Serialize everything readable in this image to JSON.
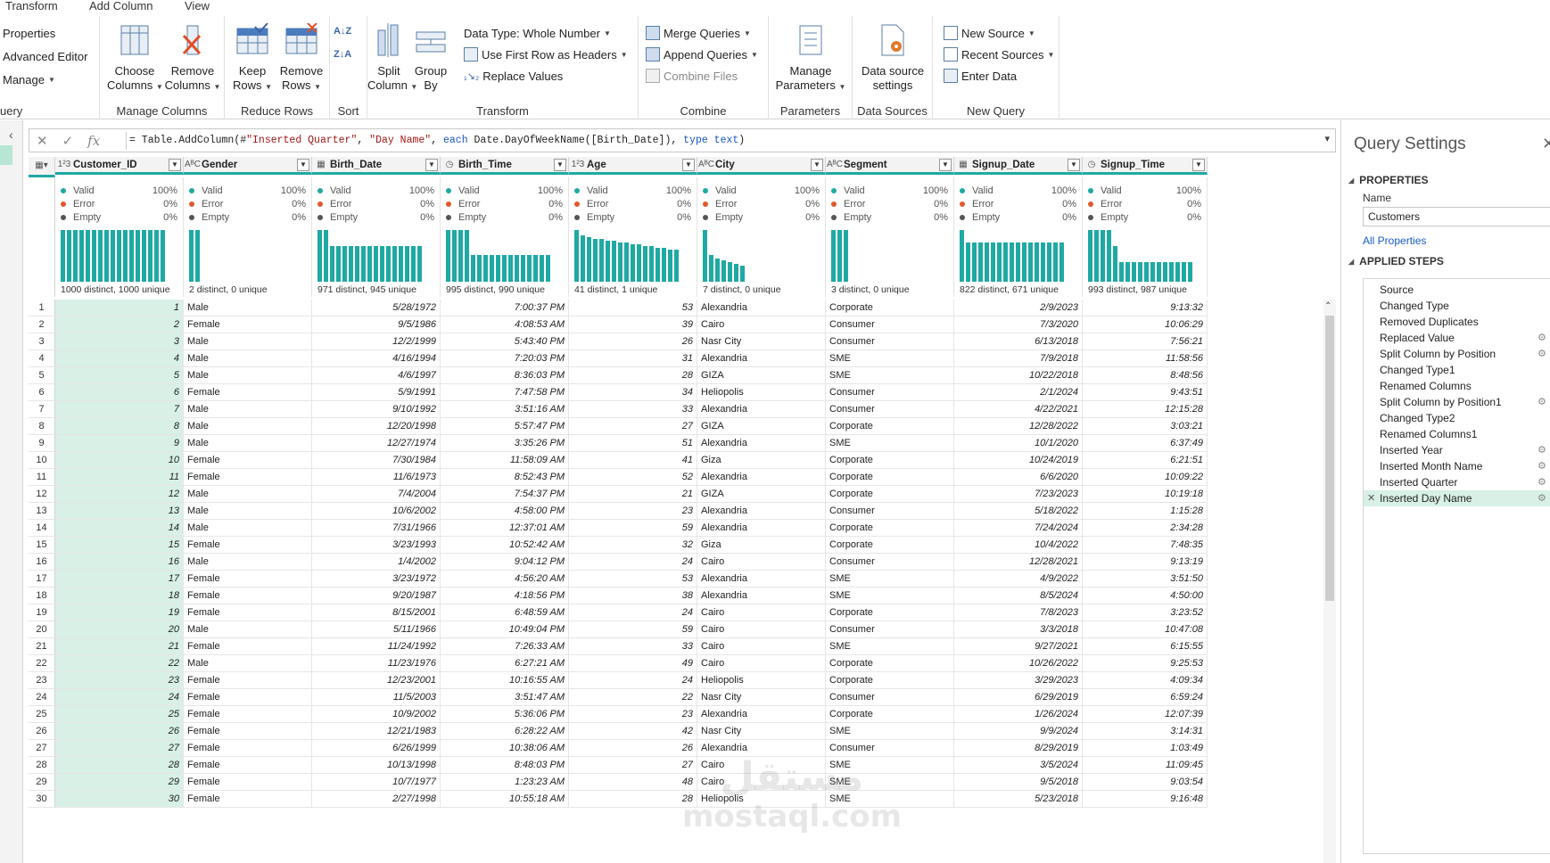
{
  "ribbon": {
    "tabs": [
      "Transform",
      "Add Column",
      "View"
    ],
    "group_query": {
      "label": "uery",
      "properties": "Properties",
      "advanced_editor": "Advanced Editor",
      "manage": "Manage"
    },
    "group_manage_columns": {
      "label": "Manage Columns",
      "choose": "Choose",
      "choose2": "Columns",
      "remove": "Remove",
      "remove2": "Columns"
    },
    "group_reduce_rows": {
      "label": "Reduce Rows",
      "keep": "Keep",
      "keep2": "Rows",
      "remove": "Remove",
      "remove2": "Rows"
    },
    "group_sort": {
      "label": "Sort"
    },
    "group_transform": {
      "label": "Transform",
      "split": "Split",
      "split2": "Column",
      "group": "Group",
      "group2": "By",
      "data_type": "Data Type: Whole Number",
      "first_row": "Use First Row as Headers",
      "replace": "Replace Values"
    },
    "group_combine": {
      "label": "Combine",
      "merge": "Merge Queries",
      "append": "Append Queries",
      "combine_files": "Combine Files"
    },
    "group_parameters": {
      "label": "Parameters",
      "manage": "Manage",
      "manage2": "Parameters"
    },
    "group_data_sources": {
      "label": "Data Sources",
      "settings": "Data source",
      "settings2": "settings"
    },
    "group_new_query": {
      "label": "New Query",
      "new_source": "New Source",
      "recent_sources": "Recent Sources",
      "enter_data": "Enter Data"
    }
  },
  "formula": {
    "prefix": "= Table.AddColumn(#",
    "s1": "\"Inserted Quarter\"",
    "c1": ", ",
    "s2": "\"Day Name\"",
    "c2": ", ",
    "kw1": "each",
    "c3": " Date.DayOfWeekName([Birth_Date]), ",
    "kw2": "type",
    "c4": " ",
    "kw3": "text",
    "c5": ")"
  },
  "columns": [
    {
      "name": "Customer_ID",
      "type": "1²3",
      "valid": "100%",
      "error": "0%",
      "empty": "0%",
      "distinct": "1000 distinct, 1000 unique"
    },
    {
      "name": "Gender",
      "type": "AᴮC",
      "valid": "100%",
      "error": "0%",
      "empty": "0%",
      "distinct": "2 distinct, 0 unique"
    },
    {
      "name": "Birth_Date",
      "type": "▦",
      "valid": "100%",
      "error": "0%",
      "empty": "0%",
      "distinct": "971 distinct, 945 unique"
    },
    {
      "name": "Birth_Time",
      "type": "◷",
      "valid": "100%",
      "error": "0%",
      "empty": "0%",
      "distinct": "995 distinct, 990 unique"
    },
    {
      "name": "Age",
      "type": "1²3",
      "valid": "100%",
      "error": "0%",
      "empty": "0%",
      "distinct": "41 distinct, 1 unique"
    },
    {
      "name": "City",
      "type": "AᴮC",
      "valid": "100%",
      "error": "0%",
      "empty": "0%",
      "distinct": "7 distinct, 0 unique"
    },
    {
      "name": "Segment",
      "type": "AᴮC",
      "valid": "100%",
      "error": "0%",
      "empty": "0%",
      "distinct": "3 distinct, 0 unique"
    },
    {
      "name": "Signup_Date",
      "type": "▦",
      "valid": "100%",
      "error": "0%",
      "empty": "0%",
      "distinct": "822 distinct, 671 unique"
    },
    {
      "name": "Signup_Time",
      "type": "◷",
      "valid": "100%",
      "error": "0%",
      "empty": "0%",
      "distinct": "993 distinct, 987 unique"
    }
  ],
  "profile_labels": {
    "valid": "Valid",
    "error": "Error",
    "empty": "Empty"
  },
  "colors": {
    "accent": "#1fa9a3",
    "valid": "#1fa9a3",
    "error": "#e05a2b",
    "empty": "#555555",
    "selected": "#d8f0e6"
  },
  "rows": [
    [
      "1",
      "Male",
      "5/28/1972",
      "7:00:37 PM",
      "53",
      "Alexandria",
      "Corporate",
      "2/9/2023",
      "9:13:32"
    ],
    [
      "2",
      "Female",
      "9/5/1986",
      "4:08:53 AM",
      "39",
      "Cairo",
      "Consumer",
      "7/3/2020",
      "10:06:29"
    ],
    [
      "3",
      "Male",
      "12/2/1999",
      "5:43:40 PM",
      "26",
      "Nasr City",
      "Consumer",
      "6/13/2018",
      "7:56:21"
    ],
    [
      "4",
      "Male",
      "4/16/1994",
      "7:20:03 PM",
      "31",
      "Alexandria",
      "SME",
      "7/9/2018",
      "11:58:56"
    ],
    [
      "5",
      "Male",
      "4/6/1997",
      "8:36:03 PM",
      "28",
      "GIZA",
      "SME",
      "10/22/2018",
      "8:48:56"
    ],
    [
      "6",
      "Female",
      "5/9/1991",
      "7:47:58 PM",
      "34",
      "Heliopolis",
      "Consumer",
      "2/1/2024",
      "9:43:51"
    ],
    [
      "7",
      "Male",
      "9/10/1992",
      "3:51:16 AM",
      "33",
      "Alexandria",
      "Consumer",
      "4/22/2021",
      "12:15:28"
    ],
    [
      "8",
      "Male",
      "12/20/1998",
      "5:57:47 PM",
      "27",
      "GIZA",
      "Corporate",
      "12/28/2022",
      "3:03:21"
    ],
    [
      "9",
      "Male",
      "12/27/1974",
      "3:35:26 PM",
      "51",
      "Alexandria",
      "SME",
      "10/1/2020",
      "6:37:49"
    ],
    [
      "10",
      "Female",
      "7/30/1984",
      "11:58:09 AM",
      "41",
      "Giza",
      "Corporate",
      "10/24/2019",
      "6:21:51"
    ],
    [
      "11",
      "Female",
      "11/6/1973",
      "8:52:43 PM",
      "52",
      "Alexandria",
      "Corporate",
      "6/6/2020",
      "10:09:22"
    ],
    [
      "12",
      "Male",
      "7/4/2004",
      "7:54:37 PM",
      "21",
      "GIZA",
      "Corporate",
      "7/23/2023",
      "10:19:18"
    ],
    [
      "13",
      "Male",
      "10/6/2002",
      "4:58:00 PM",
      "23",
      "Alexandria",
      "Consumer",
      "5/18/2022",
      "1:15:28"
    ],
    [
      "14",
      "Male",
      "7/31/1966",
      "12:37:01 AM",
      "59",
      "Alexandria",
      "Corporate",
      "7/24/2024",
      "2:34:28"
    ],
    [
      "15",
      "Female",
      "3/23/1993",
      "10:52:42 AM",
      "32",
      "Giza",
      "Corporate",
      "10/4/2022",
      "7:48:35"
    ],
    [
      "16",
      "Male",
      "1/4/2002",
      "9:04:12 PM",
      "24",
      "Cairo",
      "Consumer",
      "12/28/2021",
      "9:13:19"
    ],
    [
      "17",
      "Female",
      "3/23/1972",
      "4:56:20 AM",
      "53",
      "Alexandria",
      "SME",
      "4/9/2022",
      "3:51:50"
    ],
    [
      "18",
      "Female",
      "9/20/1987",
      "4:18:56 PM",
      "38",
      "Alexandria",
      "SME",
      "8/5/2024",
      "4:50:00"
    ],
    [
      "19",
      "Female",
      "8/15/2001",
      "6:48:59 AM",
      "24",
      "Cairo",
      "Corporate",
      "7/8/2023",
      "3:23:52"
    ],
    [
      "20",
      "Male",
      "5/11/1966",
      "10:49:04 PM",
      "59",
      "Cairo",
      "Consumer",
      "3/3/2018",
      "10:47:08"
    ],
    [
      "21",
      "Female",
      "11/24/1992",
      "7:26:33 AM",
      "33",
      "Cairo",
      "SME",
      "9/27/2021",
      "6:15:55"
    ],
    [
      "22",
      "Male",
      "11/23/1976",
      "6:27:21 AM",
      "49",
      "Cairo",
      "Corporate",
      "10/26/2022",
      "9:25:53"
    ],
    [
      "23",
      "Female",
      "12/23/2001",
      "10:16:55 AM",
      "24",
      "Heliopolis",
      "Corporate",
      "3/29/2023",
      "4:09:34"
    ],
    [
      "24",
      "Female",
      "11/5/2003",
      "3:51:47 AM",
      "22",
      "Nasr City",
      "Consumer",
      "6/29/2019",
      "6:59:24"
    ],
    [
      "25",
      "Female",
      "10/9/2002",
      "5:36:06 PM",
      "23",
      "Alexandria",
      "Corporate",
      "1/26/2024",
      "12:07:39"
    ],
    [
      "26",
      "Female",
      "12/21/1983",
      "6:28:22 AM",
      "42",
      "Nasr City",
      "SME",
      "9/9/2024",
      "3:14:31"
    ],
    [
      "27",
      "Female",
      "6/26/1999",
      "10:38:06 AM",
      "26",
      "Alexandria",
      "Consumer",
      "8/29/2019",
      "1:03:49"
    ],
    [
      "28",
      "Female",
      "10/13/1998",
      "8:48:03 PM",
      "27",
      "Cairo",
      "SME",
      "3/5/2024",
      "11:09:45"
    ],
    [
      "29",
      "Female",
      "10/7/1977",
      "1:23:23 AM",
      "48",
      "Cairo",
      "SME",
      "9/5/2018",
      "9:03:54"
    ],
    [
      "30",
      "Female",
      "2/27/1998",
      "10:55:18 AM",
      "28",
      "Heliopolis",
      "SME",
      "5/23/2018",
      "9:16:48"
    ]
  ],
  "query_settings": {
    "title": "Query Settings",
    "properties_label": "PROPERTIES",
    "name_label": "Name",
    "name_value": "Customers",
    "all_properties": "All Properties",
    "applied_steps_label": "APPLIED STEPS",
    "steps": [
      {
        "name": "Source",
        "gear": false
      },
      {
        "name": "Changed Type",
        "gear": false
      },
      {
        "name": "Removed Duplicates",
        "gear": false
      },
      {
        "name": "Replaced Value",
        "gear": true
      },
      {
        "name": "Split Column by Position",
        "gear": true
      },
      {
        "name": "Changed Type1",
        "gear": false
      },
      {
        "name": "Renamed Columns",
        "gear": false
      },
      {
        "name": "Split Column by Position1",
        "gear": true
      },
      {
        "name": "Changed Type2",
        "gear": false
      },
      {
        "name": "Renamed Columns1",
        "gear": false
      },
      {
        "name": "Inserted Year",
        "gear": true
      },
      {
        "name": "Inserted Month Name",
        "gear": true
      },
      {
        "name": "Inserted Quarter",
        "gear": true
      },
      {
        "name": "Inserted Day Name",
        "gear": true,
        "active": true
      }
    ]
  },
  "watermark": {
    "line1": "مستقل",
    "line2": "mostaql.com"
  }
}
